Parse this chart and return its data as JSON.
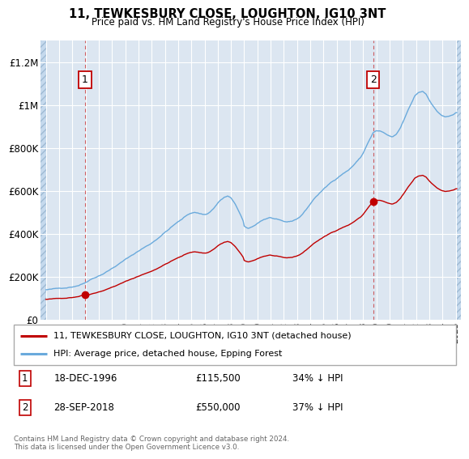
{
  "title": "11, TEWKESBURY CLOSE, LOUGHTON, IG10 3NT",
  "subtitle": "Price paid vs. HM Land Registry's House Price Index (HPI)",
  "hpi_label": "HPI: Average price, detached house, Epping Forest",
  "property_label": "11, TEWKESBURY CLOSE, LOUGHTON, IG10 3NT (detached house)",
  "transaction1_date": "18-DEC-1996",
  "transaction1_price": "£115,500",
  "transaction1_pct": "34% ↓ HPI",
  "transaction1_year": 1996.96,
  "transaction1_value": 115500,
  "transaction2_date": "28-SEP-2018",
  "transaction2_price": "£550,000",
  "transaction2_pct": "37% ↓ HPI",
  "transaction2_year": 2018.75,
  "transaction2_value": 550000,
  "footer": "Contains HM Land Registry data © Crown copyright and database right 2024.\nThis data is licensed under the Open Government Licence v3.0.",
  "hpi_color": "#6aaadc",
  "property_color": "#c00000",
  "bg_color": "#dce6f1",
  "hatch_facecolor": "#c5d9ed",
  "hatch_edgecolor": "#9fbbd4",
  "ylim": [
    0,
    1300000
  ],
  "xlim_start": 1993.6,
  "xlim_end": 2025.4,
  "yticks": [
    0,
    200000,
    400000,
    600000,
    800000,
    1000000,
    1200000
  ],
  "ylabels": [
    "£0",
    "£200K",
    "£400K",
    "£600K",
    "£800K",
    "£1M",
    "£1.2M"
  ],
  "xticks": [
    1994,
    1995,
    1996,
    1997,
    1998,
    1999,
    2000,
    2001,
    2002,
    2003,
    2004,
    2005,
    2006,
    2007,
    2008,
    2009,
    2010,
    2011,
    2012,
    2013,
    2014,
    2015,
    2016,
    2017,
    2018,
    2019,
    2020,
    2021,
    2022,
    2023,
    2024,
    2025
  ]
}
